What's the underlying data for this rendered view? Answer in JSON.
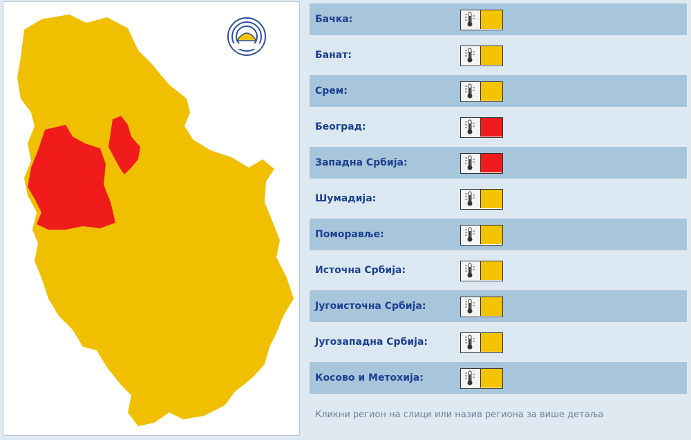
{
  "colors": {
    "yellow": "#f5c400",
    "red": "#ee1c1c",
    "map_yellow": "#f0bf00",
    "map_red": "#f01c1c",
    "label": "#1b3f8f"
  },
  "map": {
    "logo_icon": "rhmz-logo-icon",
    "regions": [
      {
        "name": "Бачка",
        "level": "yellow"
      },
      {
        "name": "Банат",
        "level": "yellow"
      },
      {
        "name": "Срем",
        "level": "yellow"
      },
      {
        "name": "Београд",
        "level": "red"
      },
      {
        "name": "Западна Србија",
        "level": "red"
      },
      {
        "name": "Шумадија",
        "level": "yellow"
      },
      {
        "name": "Поморавље",
        "level": "yellow"
      },
      {
        "name": "Источна Србија",
        "level": "yellow"
      },
      {
        "name": "Југоисточна Србија",
        "level": "yellow"
      },
      {
        "name": "Југозападна Србија",
        "level": "yellow"
      },
      {
        "name": "Косово и Метохија",
        "level": "yellow"
      }
    ]
  },
  "list": {
    "rows": [
      {
        "label": "Бачка:",
        "level": "yellow",
        "icon": "thermometer-icon"
      },
      {
        "label": "Банат:",
        "level": "yellow",
        "icon": "thermometer-icon"
      },
      {
        "label": "Срем:",
        "level": "yellow",
        "icon": "thermometer-icon"
      },
      {
        "label": "Београд:",
        "level": "red",
        "icon": "thermometer-icon"
      },
      {
        "label": "Западна Србија:",
        "level": "red",
        "icon": "thermometer-icon"
      },
      {
        "label": "Шумадија:",
        "level": "yellow",
        "icon": "thermometer-icon"
      },
      {
        "label": "Поморавље:",
        "level": "yellow",
        "icon": "thermometer-icon"
      },
      {
        "label": "Источна Србија:",
        "level": "yellow",
        "icon": "thermometer-icon"
      },
      {
        "label": "Југоисточна Србија:",
        "level": "yellow",
        "icon": "thermometer-icon"
      },
      {
        "label": "Југозападна Србија:",
        "level": "yellow",
        "icon": "thermometer-icon"
      },
      {
        "label": "Косово и Метохија:",
        "level": "yellow",
        "icon": "thermometer-icon"
      }
    ],
    "footer": "Кликни регион на слици или назив региона за више детаља"
  }
}
